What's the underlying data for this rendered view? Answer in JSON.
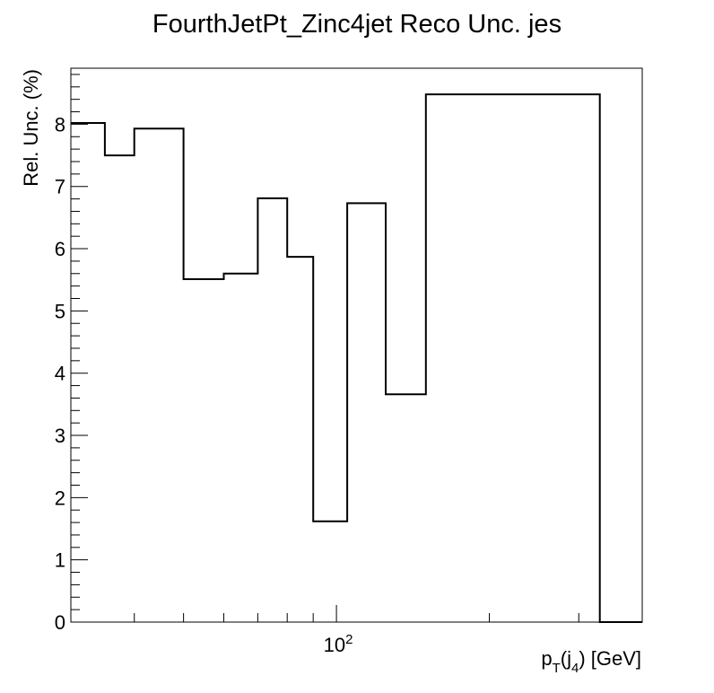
{
  "chart_data": {
    "type": "histogram",
    "title": "FourthJetPt_Zinc4jet Reco Unc. jes",
    "xlabel": {
      "main": "p",
      "sub_t": "T",
      "paren_open": "(j",
      "sub_4": "4",
      "rest": ") [GeV]"
    },
    "ylabel": "Rel. Unc. (%)",
    "x_scale": "log",
    "xlim": [
      30,
      400
    ],
    "ylim": [
      0,
      8.9
    ],
    "y_ticks": [
      0,
      1,
      2,
      3,
      4,
      5,
      6,
      7,
      8
    ],
    "x_tick_label": {
      "base": "10",
      "exp": "2"
    },
    "x_minor_ticks": [
      40,
      50,
      60,
      70,
      80,
      90,
      200,
      300
    ],
    "bin_edges": [
      30,
      35,
      40,
      50,
      60,
      70,
      80,
      90,
      105,
      125,
      150,
      330,
      400
    ],
    "values": [
      8.02,
      7.5,
      7.93,
      5.51,
      5.6,
      6.81,
      5.87,
      1.62,
      6.73,
      3.66,
      8.48,
      0.0
    ],
    "line_color": "#000000"
  }
}
